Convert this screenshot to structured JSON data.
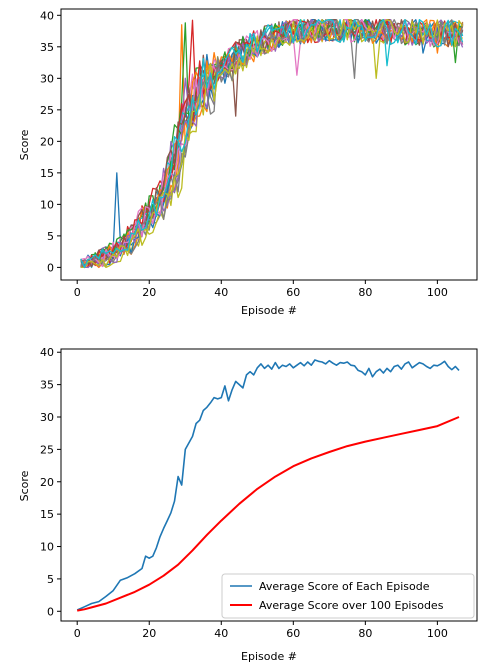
{
  "chart_data": [
    {
      "type": "line",
      "title": "",
      "xlabel": "Episode #",
      "ylabel": "Score",
      "xlim": [
        -4.5,
        111
      ],
      "ylim": [
        -2,
        41
      ],
      "xticks": [
        0,
        20,
        40,
        60,
        80,
        100
      ],
      "yticks": [
        0,
        5,
        10,
        15,
        20,
        25,
        30,
        35,
        40
      ],
      "grid": false,
      "legend": null,
      "episodes": 107,
      "num_agents": 20,
      "agent_colors": [
        "#1f77b4",
        "#ff7f0e",
        "#2ca02c",
        "#d62728",
        "#9467bd",
        "#8c564b",
        "#e377c2",
        "#7f7f7f",
        "#bcbd22",
        "#17becf"
      ],
      "series_note": "",
      "base_curve": {
        "x": [
          0,
          5,
          10,
          15,
          20,
          24,
          27,
          30,
          33,
          36,
          40,
          45,
          50,
          55,
          60,
          70,
          80,
          90,
          100,
          107
        ],
        "y": [
          0.3,
          0.8,
          2.0,
          4.0,
          8.0,
          11.0,
          15.0,
          22.0,
          26.0,
          29.0,
          31.0,
          33.5,
          35.5,
          36.5,
          37.5,
          38.0,
          37.8,
          37.5,
          37.2,
          37.0
        ]
      },
      "spikes": [
        {
          "x": 11,
          "y": 15.0,
          "color": "#8c564b"
        },
        {
          "x": 29,
          "y": 38.5,
          "color": "#d62728"
        },
        {
          "x": 30,
          "y": 38.8,
          "color": "#bcbd22"
        },
        {
          "x": 32,
          "y": 39.2,
          "color": "#17becf"
        },
        {
          "x": 30,
          "y": 30.0,
          "color": "#9467bd"
        },
        {
          "x": 44,
          "y": 24.0,
          "color": "#ff7f0e"
        },
        {
          "x": 61,
          "y": 30.5,
          "color": "#1f77b4"
        },
        {
          "x": 77,
          "y": 30.0,
          "color": "#e377c2"
        },
        {
          "x": 83,
          "y": 30.0,
          "color": "#ff7f0e"
        },
        {
          "x": 86,
          "y": 32.0,
          "color": "#d62728"
        },
        {
          "x": 96,
          "y": 34.0,
          "color": "#9467bd"
        },
        {
          "x": 100,
          "y": 34.0,
          "color": "#2ca02c"
        },
        {
          "x": 105,
          "y": 32.5,
          "color": "#ff7f0e"
        }
      ]
    },
    {
      "type": "line",
      "title": "",
      "xlabel": "Episode #",
      "ylabel": "Score",
      "xlim": [
        -4.5,
        111
      ],
      "ylim": [
        -1.5,
        40.5
      ],
      "xticks": [
        0,
        20,
        40,
        60,
        80,
        100
      ],
      "yticks": [
        0,
        5,
        10,
        15,
        20,
        25,
        30,
        35,
        40
      ],
      "grid": false,
      "legend": "bottom-right",
      "series": [
        {
          "name": "Average Score of Each Episode",
          "color": "#1f77b4",
          "x": [
            0,
            2,
            4,
            6,
            8,
            10,
            12,
            14,
            16,
            18,
            19,
            20,
            21,
            22,
            23,
            24,
            25,
            26,
            27,
            28,
            29,
            30,
            31,
            32,
            33,
            34,
            35,
            36,
            37,
            38,
            39,
            40,
            41,
            42,
            43,
            44,
            45,
            46,
            47,
            48,
            49,
            50,
            51,
            52,
            53,
            54,
            55,
            56,
            57,
            58,
            59,
            60,
            61,
            62,
            63,
            64,
            65,
            66,
            67,
            68,
            69,
            70,
            71,
            72,
            73,
            74,
            75,
            76,
            77,
            78,
            79,
            80,
            81,
            82,
            83,
            84,
            85,
            86,
            87,
            88,
            89,
            90,
            91,
            92,
            93,
            94,
            95,
            96,
            97,
            98,
            99,
            100,
            101,
            102,
            103,
            104,
            105,
            106
          ],
          "y": [
            0.2,
            0.7,
            1.2,
            1.5,
            2.3,
            3.2,
            4.8,
            5.2,
            5.8,
            6.6,
            8.5,
            8.2,
            8.5,
            9.8,
            11.5,
            12.8,
            14.0,
            15.2,
            17.0,
            20.8,
            19.5,
            25.0,
            26.0,
            27.0,
            29.0,
            29.5,
            31.0,
            31.5,
            32.2,
            33.0,
            32.8,
            33.0,
            34.8,
            32.5,
            34.2,
            35.5,
            35.0,
            34.5,
            36.5,
            37.0,
            36.5,
            37.6,
            38.2,
            37.5,
            38.0,
            37.4,
            38.4,
            37.5,
            38.0,
            37.8,
            38.2,
            37.6,
            38.0,
            38.4,
            37.9,
            38.5,
            38.0,
            38.8,
            38.6,
            38.5,
            38.2,
            38.7,
            38.3,
            38.0,
            38.4,
            38.3,
            38.5,
            38.0,
            37.9,
            37.2,
            37.0,
            36.5,
            37.5,
            36.2,
            37.0,
            37.4,
            36.8,
            37.5,
            37.0,
            37.8,
            38.0,
            37.4,
            38.2,
            38.5,
            37.6,
            38.0,
            38.4,
            38.2,
            37.8,
            37.5,
            38.0,
            37.9,
            38.2,
            38.6,
            37.8,
            37.3,
            37.8,
            37.2
          ],
          "linewidth": 1.6
        },
        {
          "name": "Average Score over 100 Episodes",
          "color": "#ff0000",
          "x": [
            0,
            2,
            4,
            8,
            12,
            16,
            20,
            24,
            28,
            32,
            36,
            40,
            45,
            50,
            55,
            60,
            65,
            70,
            75,
            80,
            85,
            90,
            95,
            100,
            106
          ],
          "y": [
            0.1,
            0.3,
            0.6,
            1.2,
            2.1,
            3.0,
            4.1,
            5.5,
            7.2,
            9.4,
            11.8,
            14.0,
            16.6,
            18.9,
            20.8,
            22.4,
            23.6,
            24.6,
            25.5,
            26.2,
            26.8,
            27.4,
            28.0,
            28.6,
            30.0
          ],
          "linewidth": 2.0
        }
      ]
    }
  ]
}
